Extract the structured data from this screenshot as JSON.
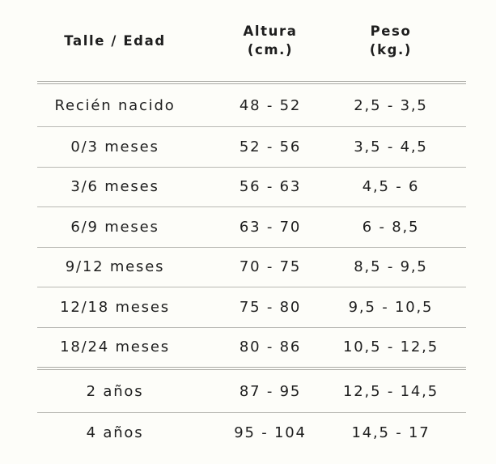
{
  "headers": {
    "size": "Talle / Edad",
    "height": "Altura\n(cm.)",
    "weight": "Peso\n(kg.)"
  },
  "rows": [
    {
      "size": "Recién nacido",
      "height": "48 - 52",
      "weight": "2,5 - 3,5"
    },
    {
      "size": "0/3 meses",
      "height": "52 - 56",
      "weight": "3,5 - 4,5"
    },
    {
      "size": "3/6 meses",
      "height": "56 - 63",
      "weight": "4,5 - 6"
    },
    {
      "size": "6/9 meses",
      "height": "63 - 70",
      "weight": "6 - 8,5"
    },
    {
      "size": "9/12 meses",
      "height": "70 - 75",
      "weight": "8,5 - 9,5"
    },
    {
      "size": "12/18 meses",
      "height": "75 - 80",
      "weight": "9,5 - 10,5"
    },
    {
      "size": "18/24 meses",
      "height": "80 - 86",
      "weight": "10,5 - 12,5"
    },
    {
      "size": "2 años",
      "height": "87 - 95",
      "weight": "12,5 - 14,5"
    },
    {
      "size": "4 años",
      "height": "95 - 104",
      "weight": "14,5 - 17"
    }
  ]
}
